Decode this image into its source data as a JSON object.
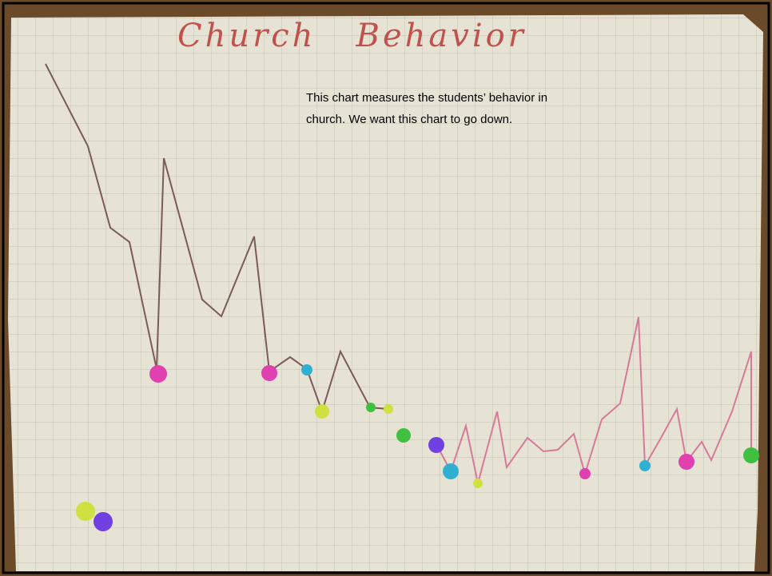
{
  "photo": {
    "title": "Church   Behavior",
    "caption_lines": [
      "This chart measures the students’ behavior in",
      "church.  We want this chart to go down."
    ]
  }
}
